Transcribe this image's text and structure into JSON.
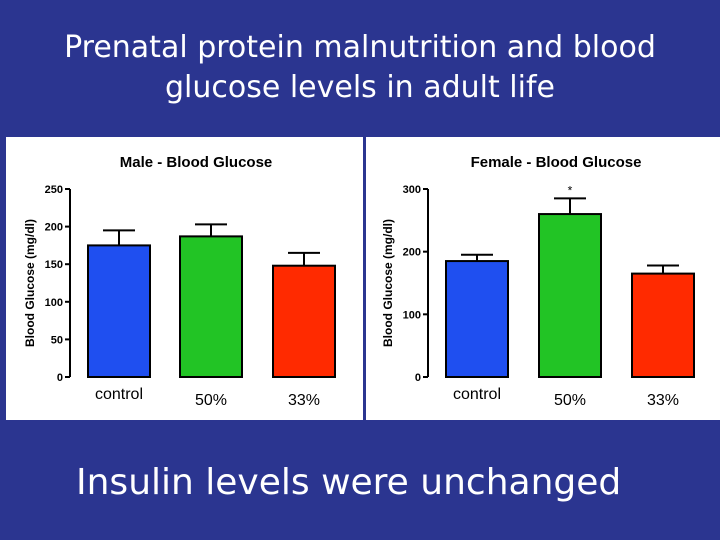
{
  "slide": {
    "title_line1": "Prenatal protein malnutrition and blood",
    "title_line2": "glucose levels in adult life",
    "footer": "Insulin levels were unchanged"
  },
  "chart_data": [
    {
      "type": "bar",
      "title": "Male - Blood Glucose",
      "xlabel": "",
      "ylabel": "Blood Glucose (mg/dl)",
      "categories": [
        "control",
        "50%",
        "33%"
      ],
      "values": [
        175,
        187,
        148
      ],
      "errors": [
        20,
        16,
        17
      ],
      "colors": [
        "#1f4ff0",
        "#22c425",
        "#ff2a00"
      ],
      "ylim": [
        0,
        250
      ],
      "yticks": [
        0,
        50,
        100,
        150,
        200,
        250
      ],
      "significance": [
        "",
        "",
        ""
      ]
    },
    {
      "type": "bar",
      "title": "Female - Blood Glucose",
      "xlabel": "",
      "ylabel": "Blood Glucose (mg/dl)",
      "categories": [
        "control",
        "50%",
        "33%"
      ],
      "values": [
        185,
        260,
        165
      ],
      "errors": [
        10,
        25,
        13
      ],
      "colors": [
        "#1f4ff0",
        "#22c425",
        "#ff2a00"
      ],
      "ylim": [
        0,
        300
      ],
      "yticks": [
        0,
        100,
        200,
        300
      ],
      "significance": [
        "",
        "*",
        ""
      ]
    }
  ]
}
